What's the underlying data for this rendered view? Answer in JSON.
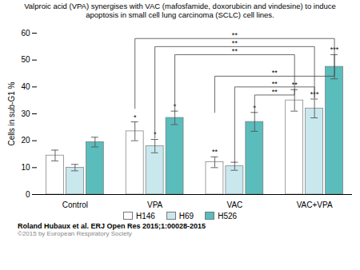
{
  "chart_data": {
    "type": "bar",
    "title": "Valproic acid (VPA) synergises with VAC (mafosfamide, doxorubicin and vindesine) to induce\napoptosis in small cell lung carcinoma (SCLC) cell lines.",
    "ylabel": "Cells in sub-G1 %",
    "categories": [
      "Control",
      "VPA",
      "VAC",
      "VAC+VPA"
    ],
    "series": [
      {
        "name": "H146",
        "color": "#ffffff",
        "values": [
          14.5,
          23.5,
          12.0,
          35.0
        ],
        "errors": [
          2.0,
          3.5,
          2.0,
          4.0
        ],
        "labels": [
          null,
          "*",
          "**",
          "**"
        ]
      },
      {
        "name": "H69",
        "color": "#c8e8ee",
        "values": [
          10.0,
          18.0,
          10.5,
          32.0
        ],
        "errors": [
          1.2,
          2.5,
          1.5,
          3.5
        ],
        "labels": [
          null,
          "*",
          null,
          "***"
        ]
      },
      {
        "name": "H526",
        "color": "#5bbcbc",
        "values": [
          19.5,
          28.5,
          27.0,
          47.5
        ],
        "errors": [
          1.8,
          2.5,
          3.5,
          4.5
        ],
        "labels": [
          null,
          "*",
          "*",
          "***"
        ]
      }
    ],
    "edge_color": "#777777",
    "brackets": [
      {
        "from_category": "VPA",
        "from_series": "H146",
        "to_category": "VAC+VPA",
        "to_series": "H526",
        "y_from": 32,
        "y_top": 58,
        "y_to": 52,
        "label": "**"
      },
      {
        "from_category": "VPA",
        "from_series": "H69",
        "to_category": "VAC+VPA",
        "to_series": "H69",
        "y_from": 21,
        "y_top": 55,
        "y_to": 36,
        "label": "**"
      },
      {
        "from_category": "VPA",
        "from_series": "H526",
        "to_category": "VAC+VPA",
        "to_series": "H146",
        "y_from": 31,
        "y_top": 52,
        "y_to": 39,
        "label": "**"
      },
      {
        "from_category": "VAC",
        "from_series": "H146",
        "to_category": "VAC+VPA",
        "to_series": "H526",
        "y_from": 30.5,
        "y_top": 44,
        "y_to": 52,
        "label": "**"
      },
      {
        "from_category": "VAC",
        "from_series": "H69",
        "to_category": "VAC+VPA",
        "to_series": "H69",
        "y_from": 12,
        "y_top": 40,
        "y_to": 36,
        "label": "**"
      },
      {
        "from_category": "VAC",
        "from_series": "H526",
        "to_category": "VAC+VPA",
        "to_series": "H146",
        "y_from": 30.5,
        "y_top": 37,
        "y_to": 39,
        "label": "**"
      }
    ],
    "ylim": [
      0,
      60
    ],
    "yticks": [
      0,
      10,
      20,
      30,
      40,
      50,
      60
    ],
    "grid": false,
    "legend": "bottom",
    "source": "Roland Hubaux et al. ERJ Open Res 2015;1:00028-2015",
    "copyright": "©2015 by European Respiratory Society"
  }
}
